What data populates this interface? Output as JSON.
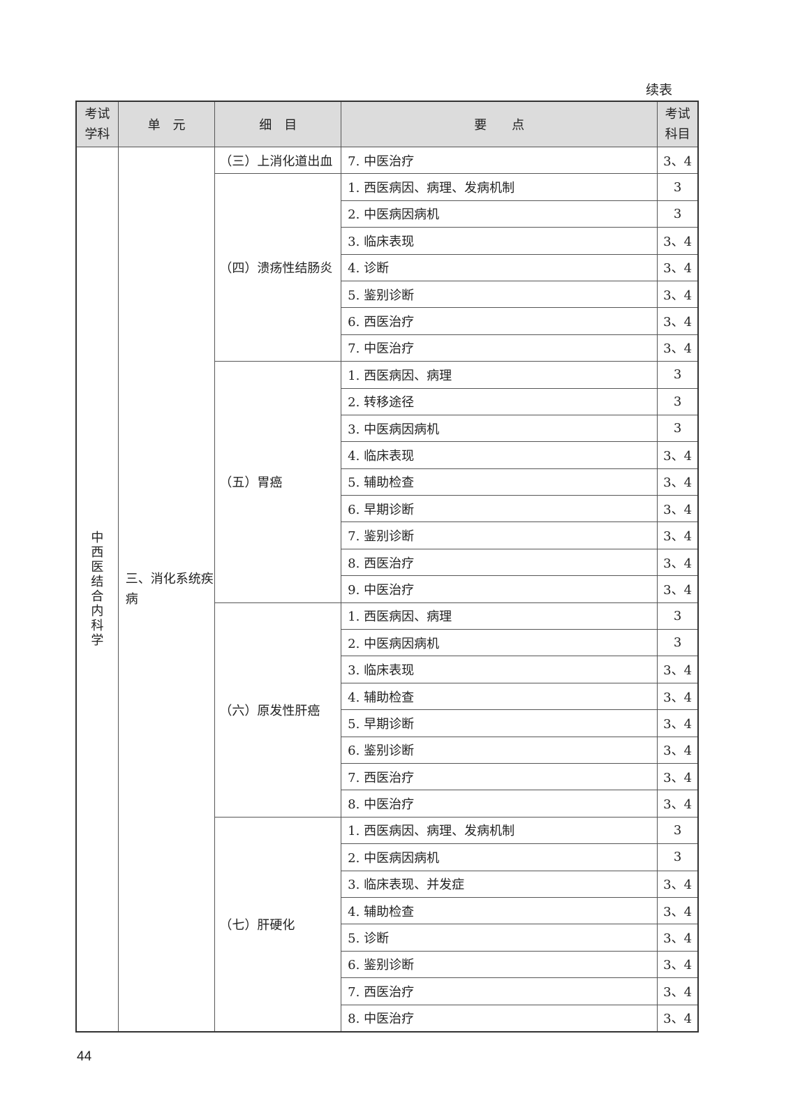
{
  "continued_label": "续表",
  "headers": {
    "subject": "考试学科",
    "unit": "单　元",
    "item": "细　目",
    "point": "要　　点",
    "level": "考试科目"
  },
  "subject": "中西医结合内科学",
  "unit": "三、消化系统疾病",
  "groups": [
    {
      "item": "（三）上消化道出血",
      "points": [
        [
          "7. 中医治疗",
          "3、4"
        ]
      ]
    },
    {
      "item": "（四）溃疡性结肠炎",
      "points": [
        [
          "1. 西医病因、病理、发病机制",
          "3"
        ],
        [
          "2. 中医病因病机",
          "3"
        ],
        [
          "3. 临床表现",
          "3、4"
        ],
        [
          "4. 诊断",
          "3、4"
        ],
        [
          "5. 鉴别诊断",
          "3、4"
        ],
        [
          "6. 西医治疗",
          "3、4"
        ],
        [
          "7. 中医治疗",
          "3、4"
        ]
      ]
    },
    {
      "item": "（五）胃癌",
      "points": [
        [
          "1. 西医病因、病理",
          "3"
        ],
        [
          "2. 转移途径",
          "3"
        ],
        [
          "3. 中医病因病机",
          "3"
        ],
        [
          "4. 临床表现",
          "3、4"
        ],
        [
          "5. 辅助检查",
          "3、4"
        ],
        [
          "6. 早期诊断",
          "3、4"
        ],
        [
          "7. 鉴别诊断",
          "3、4"
        ],
        [
          "8. 西医治疗",
          "3、4"
        ],
        [
          "9. 中医治疗",
          "3、4"
        ]
      ]
    },
    {
      "item": "（六）原发性肝癌",
      "points": [
        [
          "1. 西医病因、病理",
          "3"
        ],
        [
          "2. 中医病因病机",
          "3"
        ],
        [
          "3. 临床表现",
          "3、4"
        ],
        [
          "4. 辅助检查",
          "3、4"
        ],
        [
          "5. 早期诊断",
          "3、4"
        ],
        [
          "6. 鉴别诊断",
          "3、4"
        ],
        [
          "7. 西医治疗",
          "3、4"
        ],
        [
          "8. 中医治疗",
          "3、4"
        ]
      ]
    },
    {
      "item": "（七）肝硬化",
      "points": [
        [
          "1. 西医病因、病理、发病机制",
          "3"
        ],
        [
          "2. 中医病因病机",
          "3"
        ],
        [
          "3. 临床表现、并发症",
          "3、4"
        ],
        [
          "4. 辅助检查",
          "3、4"
        ],
        [
          "5. 诊断",
          "3、4"
        ],
        [
          "6. 鉴别诊断",
          "3、4"
        ],
        [
          "7. 西医治疗",
          "3、4"
        ],
        [
          "8. 中医治疗",
          "3、4"
        ]
      ]
    }
  ],
  "page_number": "44"
}
